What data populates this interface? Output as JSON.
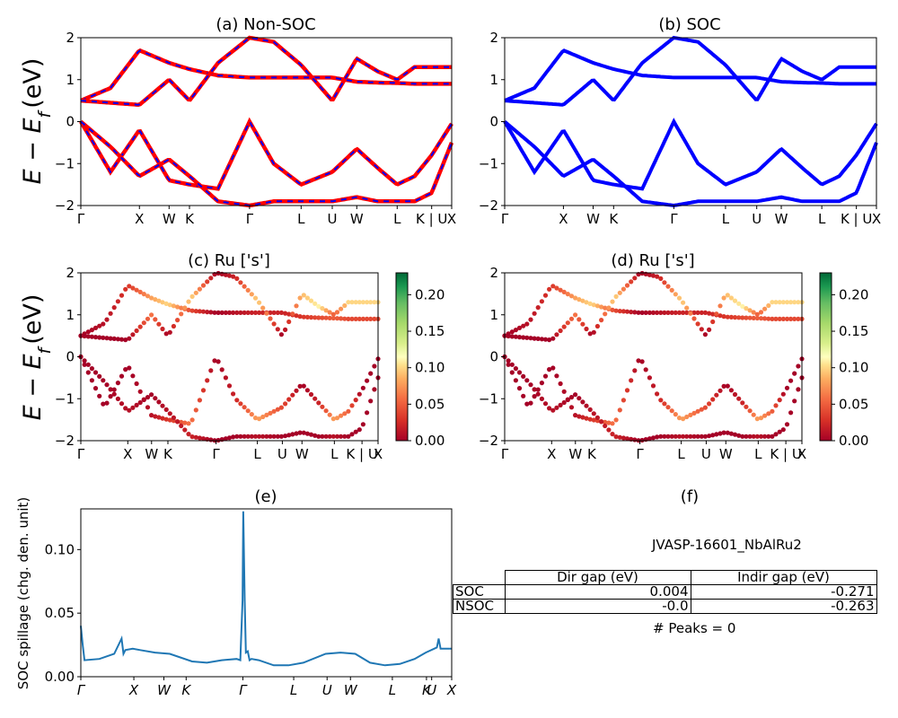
{
  "colors": {
    "nonsoc_red": "#ff0000",
    "nonsoc_blue": "#0000ff",
    "soc_blue": "#0000ff",
    "spillage_line": "#1f77b4"
  },
  "kpath_labels": [
    "Γ",
    "X",
    "W",
    "K",
    "Γ",
    "L",
    "U",
    "W",
    "L",
    "K | U",
    "X"
  ],
  "kpath_positions": [
    0.0,
    0.158,
    0.238,
    0.293,
    0.455,
    0.594,
    0.678,
    0.744,
    0.853,
    0.946,
    1.0
  ],
  "spillage_tick_labels": [
    "Γ",
    "X",
    "W",
    "K",
    "Γ",
    "L",
    "U",
    "W",
    "L",
    "K",
    "U",
    "X"
  ],
  "spillage_tick_positions": [
    0.0,
    0.143,
    0.224,
    0.284,
    0.437,
    0.574,
    0.664,
    0.727,
    0.84,
    0.932,
    0.946,
    1.0
  ],
  "panels": {
    "a_title": "(a) Non-SOC",
    "b_title": "(b) SOC",
    "c_title": "(c)  Ru ['s']",
    "d_title": "(d) Ru ['s']",
    "e_title": "(e)",
    "f_title": "(f)"
  },
  "axes": {
    "energy_ylabel_main": "E − E",
    "energy_ylabel_sub": "f",
    "energy_ylabel_unit": "(eV)",
    "energy_yticks": [
      "2",
      "1",
      "0",
      "−1",
      "−2"
    ],
    "spillage_ylabel": "SOC spillage (chg. den. unit)",
    "spillage_yticks": [
      "0.10",
      "0.05",
      "0.00"
    ],
    "colorbar_ticks": [
      "0.20",
      "0.15",
      "0.10",
      "0.05",
      "0.00"
    ]
  },
  "info": {
    "jid": "JVASP-16601_NbAlRu2",
    "table": {
      "headers": [
        "Dir gap (eV)",
        "Indir gap (eV)"
      ],
      "rows": [
        {
          "label": "SOC",
          "dir": "0.004",
          "indir": "-0.271"
        },
        {
          "label": "NSOC",
          "dir": "-0.0",
          "indir": "-0.263"
        }
      ]
    },
    "peaks": "# Peaks = 0"
  },
  "chart_data": [
    {
      "type": "line",
      "title": "(a) Non-SOC",
      "ylabel": "E − E_f (eV)",
      "ylim": [
        -2,
        2
      ],
      "x_ticks": [
        "Γ",
        "X",
        "W",
        "K",
        "Γ",
        "L",
        "U",
        "W",
        "L",
        "K | U",
        "X"
      ],
      "series": [
        {
          "x": [
            0.0,
            0.08,
            0.158,
            0.238,
            0.293,
            0.37,
            0.455,
            0.52,
            0.594,
            0.678,
            0.744,
            0.8,
            0.853,
            0.9,
            0.946,
            1.0
          ],
          "values": [
            0.0,
            -1.2,
            -0.2,
            -1.4,
            -1.5,
            -1.6,
            0.0,
            -1.0,
            -1.5,
            -1.2,
            -0.65,
            -1.1,
            -1.5,
            -1.3,
            -0.8,
            -0.05
          ]
        },
        {
          "x": [
            0.0,
            0.08,
            0.158,
            0.238,
            0.293,
            0.37,
            0.455,
            0.52,
            0.594,
            0.678,
            0.744,
            0.8,
            0.853,
            0.9,
            0.946,
            1.0
          ],
          "values": [
            0.5,
            0.8,
            1.7,
            1.4,
            1.25,
            1.1,
            1.05,
            1.05,
            1.05,
            1.05,
            0.95,
            0.93,
            0.92,
            0.9,
            0.9,
            0.9
          ]
        },
        {
          "x": [
            0.0,
            0.08,
            0.158,
            0.238,
            0.293,
            0.37,
            0.455,
            0.52,
            0.594,
            0.678,
            0.744,
            0.8,
            0.853,
            0.9,
            0.946,
            1.0
          ],
          "values": [
            0.5,
            0.45,
            0.4,
            1.0,
            0.5,
            1.4,
            2.0,
            1.9,
            1.35,
            0.5,
            1.5,
            1.2,
            1.0,
            1.3,
            1.3,
            1.3
          ]
        },
        {
          "x": [
            0.0,
            0.08,
            0.158,
            0.238,
            0.293,
            0.37,
            0.455,
            0.52,
            0.594,
            0.678,
            0.744,
            0.8,
            0.853,
            0.9,
            0.946,
            1.0
          ],
          "values": [
            0.0,
            -0.6,
            -1.3,
            -0.9,
            -1.3,
            -1.9,
            -2.0,
            -1.9,
            -1.9,
            -1.9,
            -1.8,
            -1.9,
            -1.9,
            -1.9,
            -1.7,
            -0.5
          ]
        }
      ]
    },
    {
      "type": "line",
      "title": "(b) SOC",
      "ylim": [
        -2,
        2
      ],
      "x_ticks": [
        "Γ",
        "X",
        "W",
        "K",
        "Γ",
        "L",
        "U",
        "W",
        "L",
        "K | U",
        "X"
      ],
      "series": [
        {
          "x": [
            0.0,
            0.08,
            0.158,
            0.238,
            0.293,
            0.37,
            0.455,
            0.52,
            0.594,
            0.678,
            0.744,
            0.8,
            0.853,
            0.9,
            0.946,
            1.0
          ],
          "values": [
            0.0,
            -1.2,
            -0.2,
            -1.4,
            -1.5,
            -1.6,
            0.0,
            -1.0,
            -1.5,
            -1.2,
            -0.65,
            -1.1,
            -1.5,
            -1.3,
            -0.8,
            -0.05
          ]
        },
        {
          "x": [
            0.0,
            0.08,
            0.158,
            0.238,
            0.293,
            0.37,
            0.455,
            0.52,
            0.594,
            0.678,
            0.744,
            0.8,
            0.853,
            0.9,
            0.946,
            1.0
          ],
          "values": [
            0.5,
            0.8,
            1.7,
            1.4,
            1.25,
            1.1,
            1.05,
            1.05,
            1.05,
            1.05,
            0.95,
            0.93,
            0.92,
            0.9,
            0.9,
            0.9
          ]
        },
        {
          "x": [
            0.0,
            0.08,
            0.158,
            0.238,
            0.293,
            0.37,
            0.455,
            0.52,
            0.594,
            0.678,
            0.744,
            0.8,
            0.853,
            0.9,
            0.946,
            1.0
          ],
          "values": [
            0.5,
            0.45,
            0.4,
            1.0,
            0.5,
            1.4,
            2.0,
            1.9,
            1.35,
            0.5,
            1.5,
            1.2,
            1.0,
            1.3,
            1.3,
            1.3
          ]
        },
        {
          "x": [
            0.0,
            0.08,
            0.158,
            0.238,
            0.293,
            0.37,
            0.455,
            0.52,
            0.594,
            0.678,
            0.744,
            0.8,
            0.853,
            0.9,
            0.946,
            1.0
          ],
          "values": [
            0.0,
            -0.6,
            -1.3,
            -0.9,
            -1.3,
            -1.9,
            -2.0,
            -1.9,
            -1.9,
            -1.9,
            -1.8,
            -1.9,
            -1.9,
            -1.9,
            -1.7,
            -0.5
          ]
        }
      ]
    },
    {
      "type": "scatter",
      "title": "(c)  Ru ['s']",
      "ylim": [
        -2,
        2
      ],
      "colorbar": {
        "min": 0.0,
        "max": 0.23,
        "ticks": [
          0.0,
          0.05,
          0.1,
          0.15,
          0.2
        ]
      },
      "x_ticks": [
        "Γ",
        "X",
        "W",
        "K",
        "Γ",
        "L",
        "U",
        "W",
        "L",
        "K | U",
        "X"
      ],
      "series": [
        {
          "name": "",
          "x": [
            0.0,
            0.08,
            0.158,
            0.238,
            0.293,
            0.37,
            0.455,
            0.52,
            0.594,
            0.678,
            0.744,
            0.8,
            0.853,
            0.9,
            0.946,
            1.0
          ],
          "values": [
            0.0,
            -1.2,
            -0.2,
            -1.4,
            -1.5,
            -1.6,
            0.0,
            -1.0,
            -1.5,
            -1.2,
            -0.65,
            -1.1,
            -1.5,
            -1.3,
            -0.8,
            -0.05
          ],
          "weights": [
            0.0,
            0.0,
            0.0,
            0.01,
            0.03,
            0.06,
            0.0,
            0.02,
            0.08,
            0.04,
            0.0,
            0.02,
            0.08,
            0.05,
            0.0,
            0.0
          ]
        },
        {
          "name": "",
          "x": [
            0.0,
            0.08,
            0.158,
            0.238,
            0.293,
            0.37,
            0.455,
            0.52,
            0.594,
            0.678,
            0.744,
            0.8,
            0.853,
            0.9,
            0.946,
            1.0
          ],
          "values": [
            0.5,
            0.8,
            1.7,
            1.4,
            1.25,
            1.1,
            1.05,
            1.05,
            1.05,
            1.05,
            0.95,
            0.93,
            0.92,
            0.9,
            0.9,
            0.9
          ],
          "weights": [
            0.0,
            0.01,
            0.03,
            0.08,
            0.1,
            0.04,
            0.0,
            0.01,
            0.02,
            0.02,
            0.03,
            0.04,
            0.05,
            0.04,
            0.04,
            0.04
          ]
        },
        {
          "name": "",
          "x": [
            0.0,
            0.08,
            0.158,
            0.238,
            0.293,
            0.37,
            0.455,
            0.52,
            0.594,
            0.678,
            0.744,
            0.8,
            0.853,
            0.9,
            0.946,
            1.0
          ],
          "values": [
            0.5,
            0.45,
            0.4,
            1.0,
            0.5,
            1.4,
            2.0,
            1.9,
            1.35,
            0.5,
            1.5,
            1.2,
            1.0,
            1.3,
            1.3,
            1.3
          ],
          "weights": [
            0.0,
            0.0,
            0.0,
            0.06,
            0.0,
            0.1,
            0.0,
            0.02,
            0.1,
            0.0,
            0.09,
            0.11,
            0.05,
            0.1,
            0.1,
            0.1
          ]
        },
        {
          "name": "",
          "x": [
            0.0,
            0.08,
            0.158,
            0.238,
            0.293,
            0.37,
            0.455,
            0.52,
            0.594,
            0.678,
            0.744,
            0.8,
            0.853,
            0.9,
            0.946,
            1.0
          ],
          "values": [
            0.0,
            -0.6,
            -1.3,
            -0.9,
            -1.3,
            -1.9,
            -2.0,
            -1.9,
            -1.9,
            -1.9,
            -1.8,
            -1.9,
            -1.9,
            -1.9,
            -1.7,
            -0.5
          ],
          "weights": [
            0.0,
            0.0,
            0.01,
            0.0,
            0.01,
            0.02,
            0.0,
            0.0,
            0.01,
            0.0,
            0.0,
            0.0,
            0.01,
            0.0,
            0.0,
            0.0
          ]
        }
      ]
    },
    {
      "type": "scatter",
      "title": "(d) Ru ['s']",
      "ylim": [
        -2,
        2
      ],
      "colorbar": {
        "min": 0.0,
        "max": 0.23,
        "ticks": [
          0.0,
          0.05,
          0.1,
          0.15,
          0.2
        ]
      },
      "x_ticks": [
        "Γ",
        "X",
        "W",
        "K",
        "Γ",
        "L",
        "U",
        "W",
        "L",
        "K | U",
        "X"
      ],
      "series": [
        {
          "name": "",
          "x": [
            0.0,
            0.08,
            0.158,
            0.238,
            0.293,
            0.37,
            0.455,
            0.52,
            0.594,
            0.678,
            0.744,
            0.8,
            0.853,
            0.9,
            0.946,
            1.0
          ],
          "values": [
            0.0,
            -1.2,
            -0.2,
            -1.4,
            -1.5,
            -1.6,
            0.0,
            -1.0,
            -1.5,
            -1.2,
            -0.65,
            -1.1,
            -1.5,
            -1.3,
            -0.8,
            -0.05
          ],
          "weights": [
            0.0,
            0.0,
            0.0,
            0.01,
            0.03,
            0.06,
            0.0,
            0.02,
            0.08,
            0.04,
            0.0,
            0.02,
            0.08,
            0.05,
            0.0,
            0.0
          ]
        },
        {
          "name": "",
          "x": [
            0.0,
            0.08,
            0.158,
            0.238,
            0.293,
            0.37,
            0.455,
            0.52,
            0.594,
            0.678,
            0.744,
            0.8,
            0.853,
            0.9,
            0.946,
            1.0
          ],
          "values": [
            0.5,
            0.8,
            1.7,
            1.4,
            1.25,
            1.1,
            1.05,
            1.05,
            1.05,
            1.05,
            0.95,
            0.93,
            0.92,
            0.9,
            0.9,
            0.9
          ],
          "weights": [
            0.0,
            0.01,
            0.03,
            0.08,
            0.1,
            0.04,
            0.0,
            0.01,
            0.02,
            0.02,
            0.03,
            0.04,
            0.05,
            0.04,
            0.04,
            0.04
          ]
        },
        {
          "name": "",
          "x": [
            0.0,
            0.08,
            0.158,
            0.238,
            0.293,
            0.37,
            0.455,
            0.52,
            0.594,
            0.678,
            0.744,
            0.8,
            0.853,
            0.9,
            0.946,
            1.0
          ],
          "values": [
            0.5,
            0.45,
            0.4,
            1.0,
            0.5,
            1.4,
            2.0,
            1.9,
            1.35,
            0.5,
            1.5,
            1.2,
            1.0,
            1.3,
            1.3,
            1.3
          ],
          "weights": [
            0.0,
            0.0,
            0.0,
            0.06,
            0.0,
            0.1,
            0.0,
            0.02,
            0.1,
            0.0,
            0.09,
            0.11,
            0.05,
            0.1,
            0.1,
            0.1
          ]
        },
        {
          "name": "",
          "x": [
            0.0,
            0.08,
            0.158,
            0.238,
            0.293,
            0.37,
            0.455,
            0.52,
            0.594,
            0.678,
            0.744,
            0.8,
            0.853,
            0.9,
            0.946,
            1.0
          ],
          "values": [
            0.0,
            -0.6,
            -1.3,
            -0.9,
            -1.3,
            -1.9,
            -2.0,
            -1.9,
            -1.9,
            -1.9,
            -1.8,
            -1.9,
            -1.9,
            -1.9,
            -1.7,
            -0.5
          ],
          "weights": [
            0.0,
            0.0,
            0.01,
            0.0,
            0.01,
            0.02,
            0.0,
            0.0,
            0.01,
            0.0,
            0.0,
            0.0,
            0.01,
            0.0,
            0.0,
            0.0
          ]
        }
      ]
    },
    {
      "type": "line",
      "title": "(e)",
      "ylabel": "SOC spillage (chg. den. unit)",
      "ylim": [
        0.0,
        0.132
      ],
      "x_ticks": [
        "Γ",
        "X",
        "W",
        "K",
        "Γ",
        "L",
        "U",
        "W",
        "L",
        "K",
        "U",
        "X"
      ],
      "x": [
        0.0,
        0.005,
        0.01,
        0.05,
        0.09,
        0.11,
        0.115,
        0.12,
        0.14,
        0.16,
        0.2,
        0.24,
        0.3,
        0.34,
        0.38,
        0.42,
        0.43,
        0.436,
        0.438,
        0.442,
        0.445,
        0.45,
        0.455,
        0.46,
        0.48,
        0.52,
        0.56,
        0.6,
        0.66,
        0.7,
        0.74,
        0.78,
        0.82,
        0.86,
        0.9,
        0.93,
        0.96,
        0.965,
        0.97,
        1.0
      ],
      "values": [
        0.04,
        0.025,
        0.013,
        0.014,
        0.018,
        0.03,
        0.018,
        0.021,
        0.022,
        0.021,
        0.019,
        0.018,
        0.012,
        0.011,
        0.013,
        0.014,
        0.013,
        0.06,
        0.13,
        0.06,
        0.019,
        0.02,
        0.013,
        0.014,
        0.013,
        0.009,
        0.009,
        0.011,
        0.018,
        0.019,
        0.018,
        0.011,
        0.009,
        0.01,
        0.014,
        0.019,
        0.023,
        0.03,
        0.022,
        0.022
      ]
    }
  ]
}
